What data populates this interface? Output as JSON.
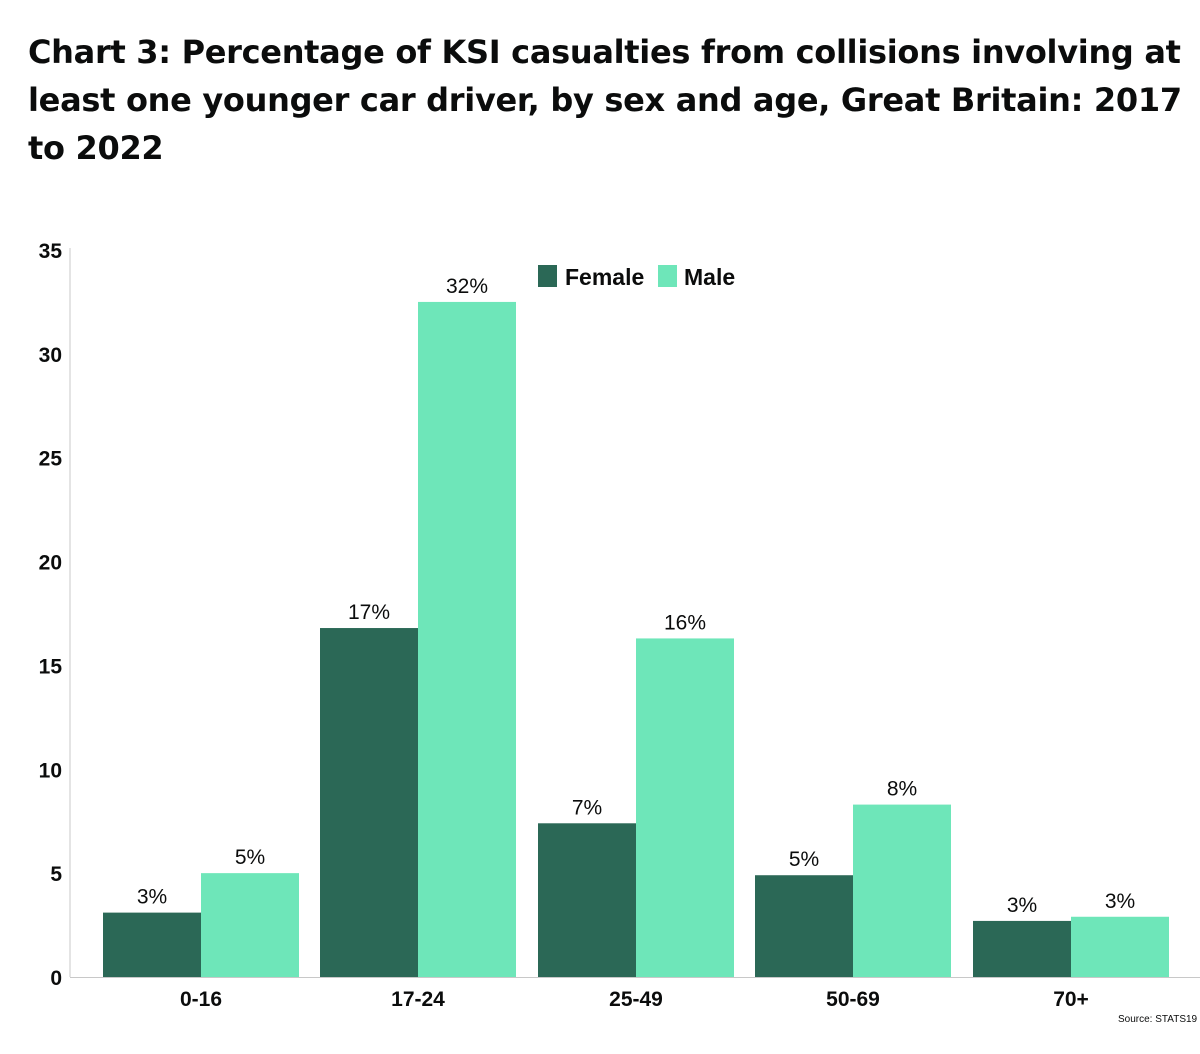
{
  "chart_data": {
    "type": "bar",
    "title": "Chart 3: Percentage of KSI casualties from collisions involving at least one younger car driver, by sex and age, Great Britain: 2017 to 2022",
    "categories": [
      "0-16",
      "17-24",
      "25-49",
      "50-69",
      "70+"
    ],
    "series": [
      {
        "name": "Female",
        "color": "#2b6856",
        "values": [
          3.1,
          16.8,
          7.4,
          4.9,
          2.7
        ],
        "labels": [
          "3%",
          "17%",
          "7%",
          "5%",
          "3%"
        ]
      },
      {
        "name": "Male",
        "color": "#6ee6b9",
        "values": [
          5.0,
          32.5,
          16.3,
          8.3,
          2.9
        ],
        "labels": [
          "5%",
          "32%",
          "16%",
          "8%",
          "3%"
        ]
      }
    ],
    "yticks": [
      0,
      5,
      10,
      15,
      20,
      25,
      30,
      35
    ],
    "ylim": [
      0,
      35
    ],
    "xlabel": "",
    "ylabel": "",
    "legend_position": "top-center",
    "source": "Source: STATS19"
  }
}
